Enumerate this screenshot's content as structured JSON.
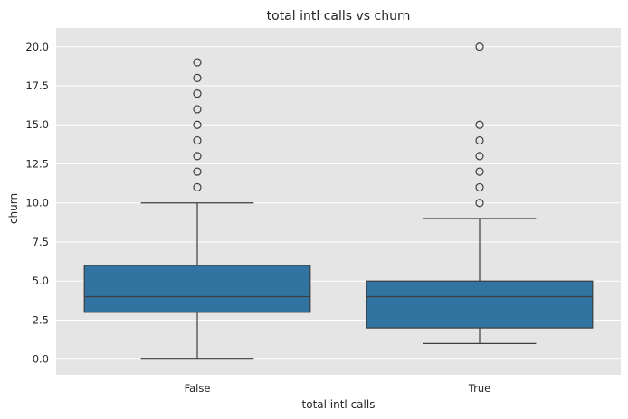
{
  "chart_data": {
    "type": "box",
    "title": "total intl calls vs churn",
    "xlabel": "total intl calls",
    "ylabel": "churn",
    "categories": [
      "False",
      "True"
    ],
    "ylim": [
      -1.0,
      21.2
    ],
    "yticks": [
      0.0,
      2.5,
      5.0,
      7.5,
      10.0,
      12.5,
      15.0,
      17.5,
      20.0
    ],
    "ytick_labels": [
      "0.0",
      "2.5",
      "5.0",
      "7.5",
      "10.0",
      "12.5",
      "15.0",
      "17.5",
      "20.0"
    ],
    "grid": true,
    "colors": {
      "background": "#e5e5e5",
      "grid": "#ffffff",
      "box_fill": "#3274a1",
      "line": "#3d3d3d"
    },
    "boxes": [
      {
        "category": "False",
        "whisker_low": 0,
        "q1": 3,
        "median": 4,
        "q3": 6,
        "whisker_high": 10,
        "outliers": [
          11,
          12,
          13,
          14,
          15,
          16,
          17,
          18,
          19
        ]
      },
      {
        "category": "True",
        "whisker_low": 1,
        "q1": 2,
        "median": 4,
        "q3": 5,
        "whisker_high": 9,
        "outliers": [
          10,
          11,
          12,
          13,
          14,
          15,
          20
        ]
      }
    ]
  }
}
